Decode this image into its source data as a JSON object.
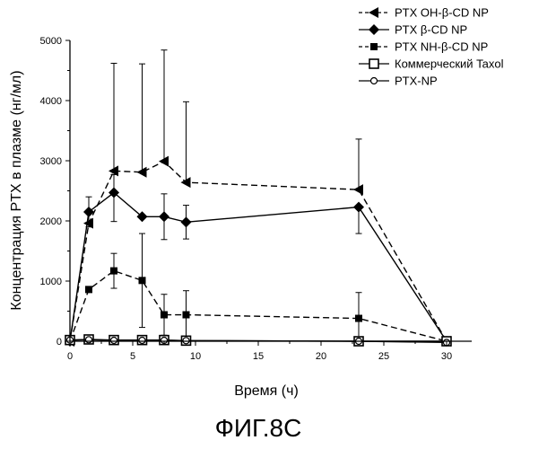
{
  "chart_data": {
    "type": "line",
    "title": "",
    "xlabel": "Время (ч)",
    "ylabel": "Концентрация PTX в плазме (нг/мл)",
    "xlim": [
      0,
      32
    ],
    "ylim": [
      0,
      5000
    ],
    "x_ticks": [
      "0",
      "5",
      "10",
      "15",
      "20",
      "25",
      "30"
    ],
    "y_ticks": [
      "0",
      "1000",
      "2000",
      "3000",
      "4000",
      "5000"
    ],
    "grid": false,
    "legend_position": "top-right",
    "caption": "ФИГ.8С",
    "series": [
      {
        "name": "PTX OH-β-CD NP",
        "marker": "triangle-left",
        "x": [
          0,
          1.5,
          3.5,
          5.75,
          7.5,
          9.25,
          23,
          30
        ],
        "y": [
          0,
          1960,
          2830,
          2810,
          2990,
          2640,
          2520,
          0
        ],
        "error_plus": [
          0,
          0,
          1790,
          1800,
          1850,
          1340,
          840,
          0
        ]
      },
      {
        "name": "PTX β-CD NP",
        "marker": "diamond",
        "x": [
          0,
          1.5,
          3.5,
          5.75,
          7.5,
          9.25,
          23,
          30
        ],
        "y": [
          0,
          2150,
          2470,
          2070,
          2070,
          1980,
          2230,
          0
        ],
        "error_plus": [
          0,
          250,
          300,
          0,
          380,
          280,
          0,
          0
        ],
        "error_minus": [
          0,
          250,
          480,
          0,
          380,
          280,
          440,
          0
        ]
      },
      {
        "name": "PTX NH-β-CD NP",
        "marker": "square-filled",
        "x": [
          0,
          1.5,
          3.5,
          5.75,
          7.5,
          9.25,
          23,
          30
        ],
        "y": [
          0,
          860,
          1170,
          1010,
          440,
          440,
          380,
          0
        ],
        "error_plus": [
          0,
          0,
          290,
          780,
          340,
          400,
          430,
          0
        ],
        "error_minus": [
          0,
          0,
          290,
          780,
          340,
          400,
          380,
          0
        ]
      },
      {
        "name": "Коммерческий Taxol",
        "marker": "square-open",
        "x": [
          0,
          1.5,
          3.5,
          5.75,
          7.5,
          9.25,
          23,
          30
        ],
        "y": [
          20,
          30,
          20,
          20,
          20,
          10,
          0,
          0
        ]
      },
      {
        "name": "PTX-NP",
        "marker": "circle-open",
        "x": [
          0,
          1.5,
          3.5,
          5.75,
          7.5,
          9.25,
          23,
          30
        ],
        "y": [
          20,
          25,
          15,
          15,
          15,
          10,
          0,
          -20
        ]
      }
    ]
  }
}
